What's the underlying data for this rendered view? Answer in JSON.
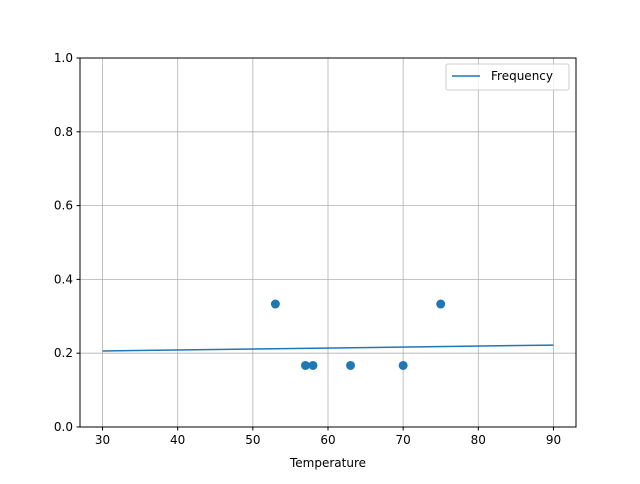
{
  "chart_data": {
    "type": "scatter",
    "title": "",
    "xlabel": "Temperature",
    "ylabel": "",
    "xlim": [
      27,
      93
    ],
    "ylim": [
      0,
      1
    ],
    "xticks": [
      30,
      40,
      50,
      60,
      70,
      80,
      90
    ],
    "yticks": [
      0.0,
      0.2,
      0.4,
      0.6,
      0.8,
      1.0
    ],
    "grid": true,
    "legend": {
      "placement": "top-right",
      "entries": [
        "Frequency"
      ]
    },
    "points": {
      "x": [
        53,
        57,
        58,
        63,
        70,
        75
      ],
      "y": [
        0.3333,
        0.1667,
        0.1667,
        0.1667,
        0.1667,
        0.3333
      ],
      "color": "#1f77b4"
    },
    "series": [
      {
        "name": "Frequency",
        "type": "line",
        "x": [
          30,
          90
        ],
        "y": [
          0.206,
          0.222
        ],
        "color": "#1f77b4"
      }
    ]
  }
}
